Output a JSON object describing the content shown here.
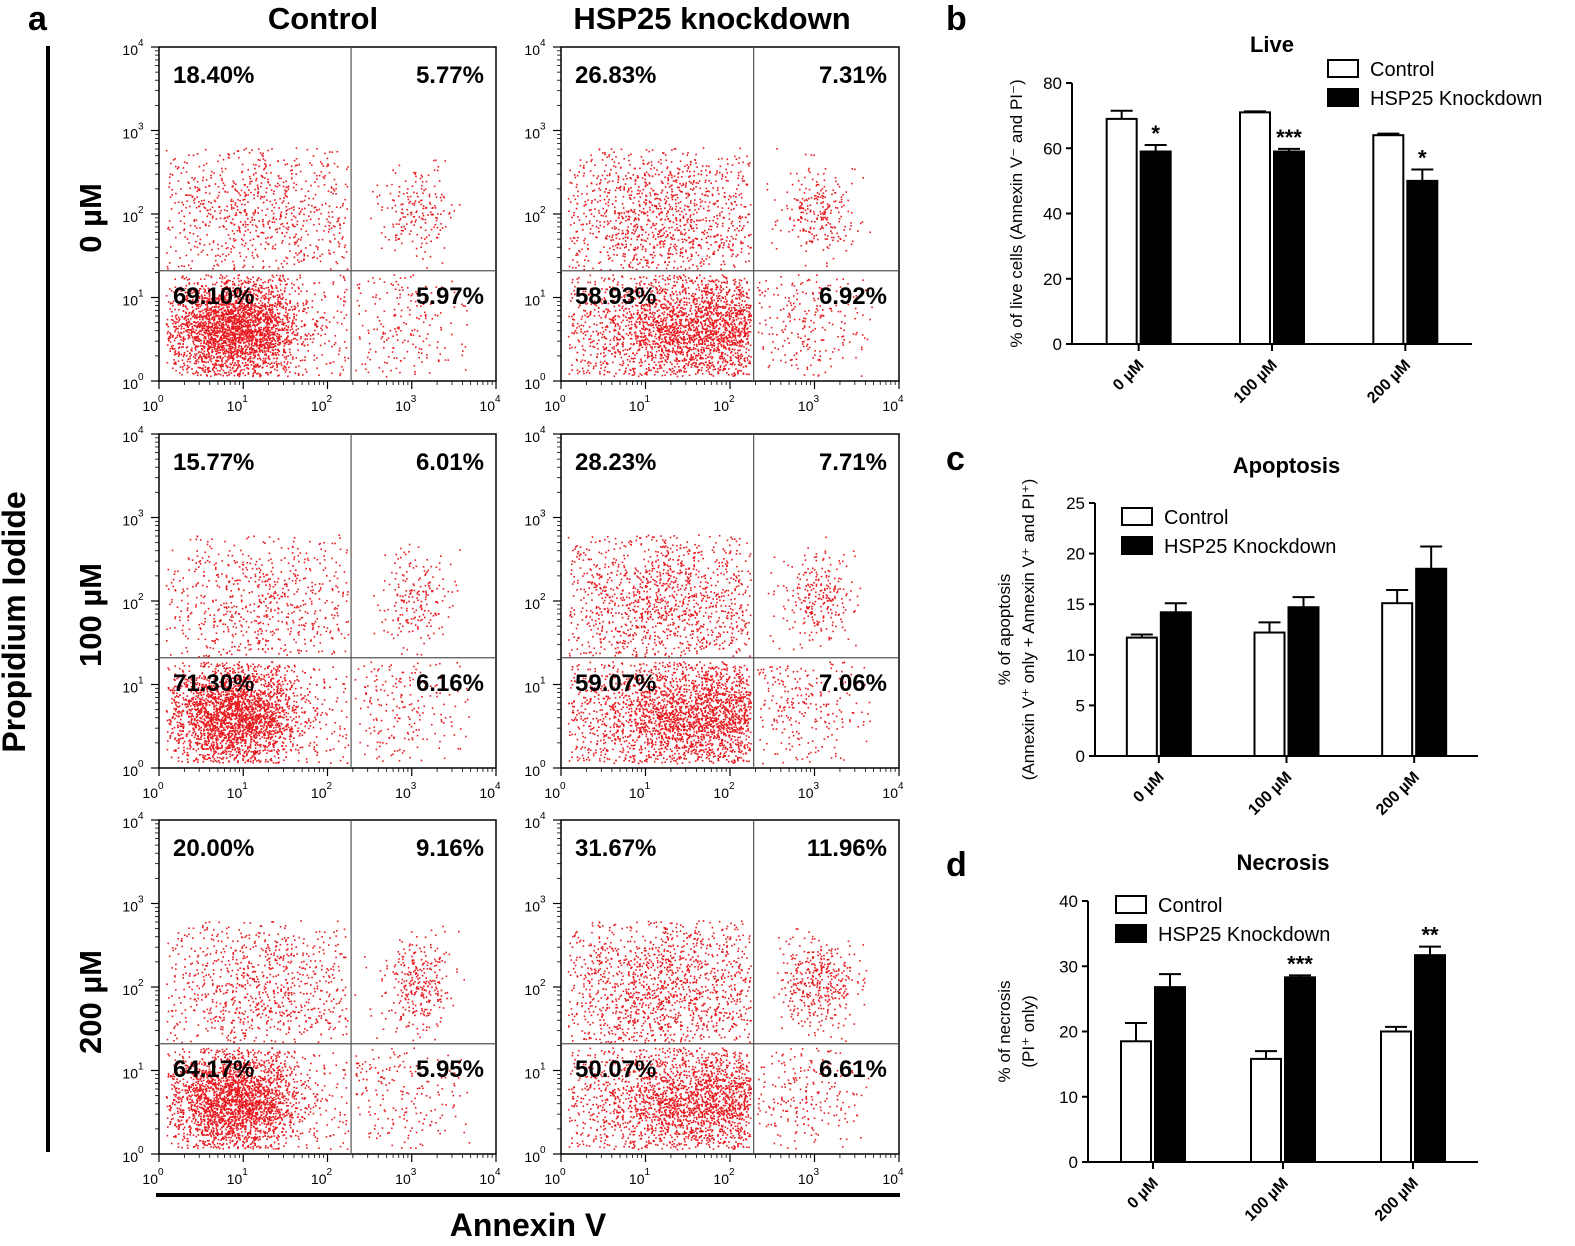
{
  "panel_labels": {
    "a": "a",
    "b": "b",
    "c": "c",
    "d": "d"
  },
  "flow": {
    "column_titles": [
      "Control",
      "HSP25 knockdown"
    ],
    "row_titles": [
      "0 µM",
      "100 µM",
      "200 µM"
    ],
    "y_axis_label": "Propidium Iodide",
    "x_axis_label": "Annexin V",
    "tick_labels": [
      "10",
      "10",
      "10",
      "10",
      "10"
    ],
    "tick_exponents": [
      "0",
      "1",
      "2",
      "3",
      "4"
    ],
    "quadrants": [
      [
        [
          "18.40%",
          "5.77%",
          "69.10%",
          "5.97%"
        ],
        [
          "26.83%",
          "7.31%",
          "58.93%",
          "6.92%"
        ]
      ],
      [
        [
          "15.77%",
          "6.01%",
          "71.30%",
          "6.16%"
        ],
        [
          "28.23%",
          "7.71%",
          "59.07%",
          "7.06%"
        ]
      ],
      [
        [
          "20.00%",
          "9.16%",
          "64.17%",
          "5.95%"
        ],
        [
          "31.67%",
          "11.96%",
          "50.07%",
          "6.61%"
        ]
      ]
    ]
  },
  "chart_data": [
    {
      "type": "bar",
      "panel": "b",
      "title": "Live",
      "ylabel": "% of live cells (Annexin V⁻ and PI⁻)",
      "categories": [
        "0 µM",
        "100 µM",
        "200 µM"
      ],
      "ylim": [
        0,
        80
      ],
      "yticks": [
        0,
        20,
        40,
        60,
        80
      ],
      "series": [
        {
          "name": "Control",
          "values": [
            69,
            71,
            64
          ],
          "errors": [
            2.5,
            0.3,
            0.5
          ],
          "color": "#ffffff"
        },
        {
          "name": "HSP25 Knockdown",
          "values": [
            59,
            59,
            50
          ],
          "errors": [
            2.0,
            0.8,
            3.5
          ],
          "color": "#000000"
        }
      ],
      "significance": [
        "*",
        "***",
        "*"
      ],
      "legend": "top-right"
    },
    {
      "type": "bar",
      "panel": "c",
      "title": "Apoptosis",
      "ylabel_line1": "% of apoptosis",
      "ylabel_line2": "(Annexin V⁺ only + Annexin V⁺ and PI⁺)",
      "categories": [
        "0 µM",
        "100 µM",
        "200 µM"
      ],
      "ylim": [
        0,
        25
      ],
      "yticks": [
        0,
        5,
        10,
        15,
        20,
        25
      ],
      "series": [
        {
          "name": "Control",
          "values": [
            11.7,
            12.2,
            15.1
          ],
          "errors": [
            0.3,
            1.0,
            1.3
          ],
          "color": "#ffffff"
        },
        {
          "name": "HSP25 Knockdown",
          "values": [
            14.2,
            14.7,
            18.5
          ],
          "errors": [
            0.9,
            1.0,
            2.2
          ],
          "color": "#000000"
        }
      ],
      "significance": [
        "",
        "",
        ""
      ],
      "legend": "top-left"
    },
    {
      "type": "bar",
      "panel": "d",
      "title": "Necrosis",
      "ylabel_line1": "% of necrosis",
      "ylabel_line2": "(PI⁺ only)",
      "categories": [
        "0 µM",
        "100 µM",
        "200 µM"
      ],
      "ylim": [
        0,
        40
      ],
      "yticks": [
        0,
        10,
        20,
        30,
        40
      ],
      "series": [
        {
          "name": "Control",
          "values": [
            18.5,
            15.8,
            20.0
          ],
          "errors": [
            2.8,
            1.2,
            0.7
          ],
          "color": "#ffffff"
        },
        {
          "name": "HSP25 Knockdown",
          "values": [
            26.8,
            28.3,
            31.7
          ],
          "errors": [
            2.0,
            0.3,
            1.3
          ],
          "color": "#000000"
        }
      ],
      "significance": [
        "",
        "***",
        "**"
      ],
      "legend": "top-left"
    }
  ]
}
